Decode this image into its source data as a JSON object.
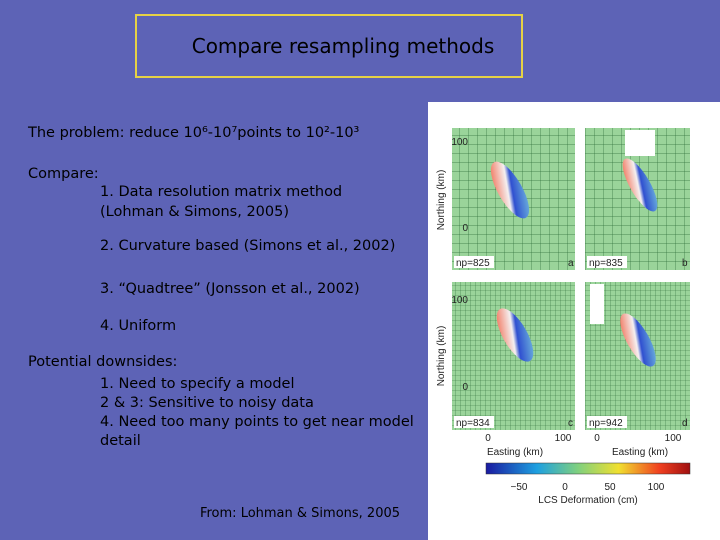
{
  "title": "Compare resampling methods",
  "body": {
    "problem": "The problem: reduce 10⁶-10⁷points to 10²-10³",
    "compare_heading": "Compare:",
    "compare_items": [
      "1. Data resolution matrix method",
      "(Lohman & Simons, 2005)",
      "2. Curvature based (Simons et al., 2002)",
      "3. “Quadtree” (Jonsson et al., 2002)",
      "4. Uniform"
    ],
    "downsides_heading": "Potential downsides:",
    "downsides_lines": [
      "1. Need to specify a model",
      "2 & 3: Sensitive to noisy data",
      "4. Need too many points to get near model",
      "detail"
    ]
  },
  "figure": {
    "y_axis_label": "Northing (km)",
    "x_axis_label": "Easting (km)",
    "y_ticks": [
      "100",
      "0"
    ],
    "x_ticks": [
      "0",
      "100"
    ],
    "panels": [
      {
        "np": "np=825",
        "letter": "a"
      },
      {
        "np": "np=835",
        "letter": "b"
      },
      {
        "np": "np=834",
        "letter": "c"
      },
      {
        "np": "np=942",
        "letter": "d"
      }
    ],
    "colorbar": {
      "ticks": [
        "−50",
        "0",
        "50",
        "100"
      ],
      "label": "LCS Deformation (cm)"
    }
  },
  "source": "From: Lohman & Simons, 2005"
}
